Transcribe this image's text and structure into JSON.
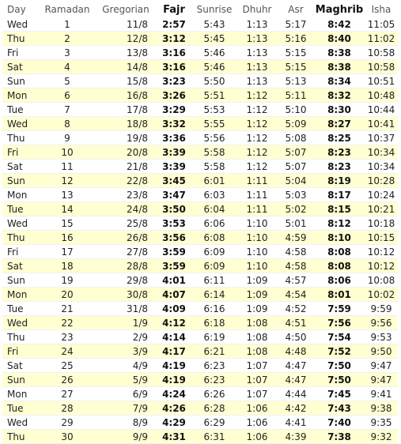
{
  "headers": [
    "Day",
    "Ramadan",
    "Gregorian",
    "Fajr",
    "Sunrise",
    "Dhuhr",
    "Asr",
    "Maghrib",
    "Isha"
  ],
  "row_colors": {
    "odd": "#ffffff",
    "even": "#ffffd2"
  },
  "rows": [
    [
      "Wed",
      "1",
      "11/8",
      "2:57",
      "5:43",
      "1:13",
      "5:17",
      "8:42",
      "11:05"
    ],
    [
      "Thu",
      "2",
      "12/8",
      "3:12",
      "5:45",
      "1:13",
      "5:16",
      "8:40",
      "11:02"
    ],
    [
      "Fri",
      "3",
      "13/8",
      "3:16",
      "5:46",
      "1:13",
      "5:15",
      "8:38",
      "10:58"
    ],
    [
      "Sat",
      "4",
      "14/8",
      "3:16",
      "5:46",
      "1:13",
      "5:15",
      "8:38",
      "10:58"
    ],
    [
      "Sun",
      "5",
      "15/8",
      "3:23",
      "5:50",
      "1:13",
      "5:13",
      "8:34",
      "10:51"
    ],
    [
      "Mon",
      "6",
      "16/8",
      "3:26",
      "5:51",
      "1:12",
      "5:11",
      "8:32",
      "10:48"
    ],
    [
      "Tue",
      "7",
      "17/8",
      "3:29",
      "5:53",
      "1:12",
      "5:10",
      "8:30",
      "10:44"
    ],
    [
      "Wed",
      "8",
      "18/8",
      "3:32",
      "5:55",
      "1:12",
      "5:09",
      "8:27",
      "10:41"
    ],
    [
      "Thu",
      "9",
      "19/8",
      "3:36",
      "5:56",
      "1:12",
      "5:08",
      "8:25",
      "10:37"
    ],
    [
      "Fri",
      "10",
      "20/8",
      "3:39",
      "5:58",
      "1:12",
      "5:07",
      "8:23",
      "10:34"
    ],
    [
      "Sat",
      "11",
      "21/8",
      "3:39",
      "5:58",
      "1:12",
      "5:07",
      "8:23",
      "10:34"
    ],
    [
      "Sun",
      "12",
      "22/8",
      "3:45",
      "6:01",
      "1:11",
      "5:04",
      "8:19",
      "10:28"
    ],
    [
      "Mon",
      "13",
      "23/8",
      "3:47",
      "6:03",
      "1:11",
      "5:03",
      "8:17",
      "10:24"
    ],
    [
      "Tue",
      "14",
      "24/8",
      "3:50",
      "6:04",
      "1:11",
      "5:02",
      "8:15",
      "10:21"
    ],
    [
      "Wed",
      "15",
      "25/8",
      "3:53",
      "6:06",
      "1:10",
      "5:01",
      "8:12",
      "10:18"
    ],
    [
      "Thu",
      "16",
      "26/8",
      "3:56",
      "6:08",
      "1:10",
      "4:59",
      "8:10",
      "10:15"
    ],
    [
      "Fri",
      "17",
      "27/8",
      "3:59",
      "6:09",
      "1:10",
      "4:58",
      "8:08",
      "10:12"
    ],
    [
      "Sat",
      "18",
      "28/8",
      "3:59",
      "6:09",
      "1:10",
      "4:58",
      "8:08",
      "10:12"
    ],
    [
      "Sun",
      "19",
      "29/8",
      "4:01",
      "6:11",
      "1:09",
      "4:57",
      "8:06",
      "10:08"
    ],
    [
      "Mon",
      "20",
      "30/8",
      "4:07",
      "6:14",
      "1:09",
      "4:54",
      "8:01",
      "10:02"
    ],
    [
      "Tue",
      "21",
      "31/8",
      "4:09",
      "6:16",
      "1:09",
      "4:52",
      "7:59",
      "9:59"
    ],
    [
      "Wed",
      "22",
      "1/9",
      "4:12",
      "6:18",
      "1:08",
      "4:51",
      "7:56",
      "9:56"
    ],
    [
      "Thu",
      "23",
      "2/9",
      "4:14",
      "6:19",
      "1:08",
      "4:50",
      "7:54",
      "9:53"
    ],
    [
      "Fri",
      "24",
      "3/9",
      "4:17",
      "6:21",
      "1:08",
      "4:48",
      "7:52",
      "9:50"
    ],
    [
      "Sat",
      "25",
      "4/9",
      "4:19",
      "6:23",
      "1:07",
      "4:47",
      "7:50",
      "9:47"
    ],
    [
      "Sun",
      "26",
      "5/9",
      "4:19",
      "6:23",
      "1:07",
      "4:47",
      "7:50",
      "9:47"
    ],
    [
      "Mon",
      "27",
      "6/9",
      "4:24",
      "6:26",
      "1:07",
      "4:44",
      "7:45",
      "9:41"
    ],
    [
      "Tue",
      "28",
      "7/9",
      "4:26",
      "6:28",
      "1:06",
      "4:42",
      "7:43",
      "9:38"
    ],
    [
      "Wed",
      "29",
      "8/9",
      "4:29",
      "6:29",
      "1:06",
      "4:41",
      "7:40",
      "9:35"
    ],
    [
      "Thu",
      "30",
      "9/9",
      "4:31",
      "6:31",
      "1:06",
      "4:39",
      "7:38",
      "9:32"
    ]
  ]
}
